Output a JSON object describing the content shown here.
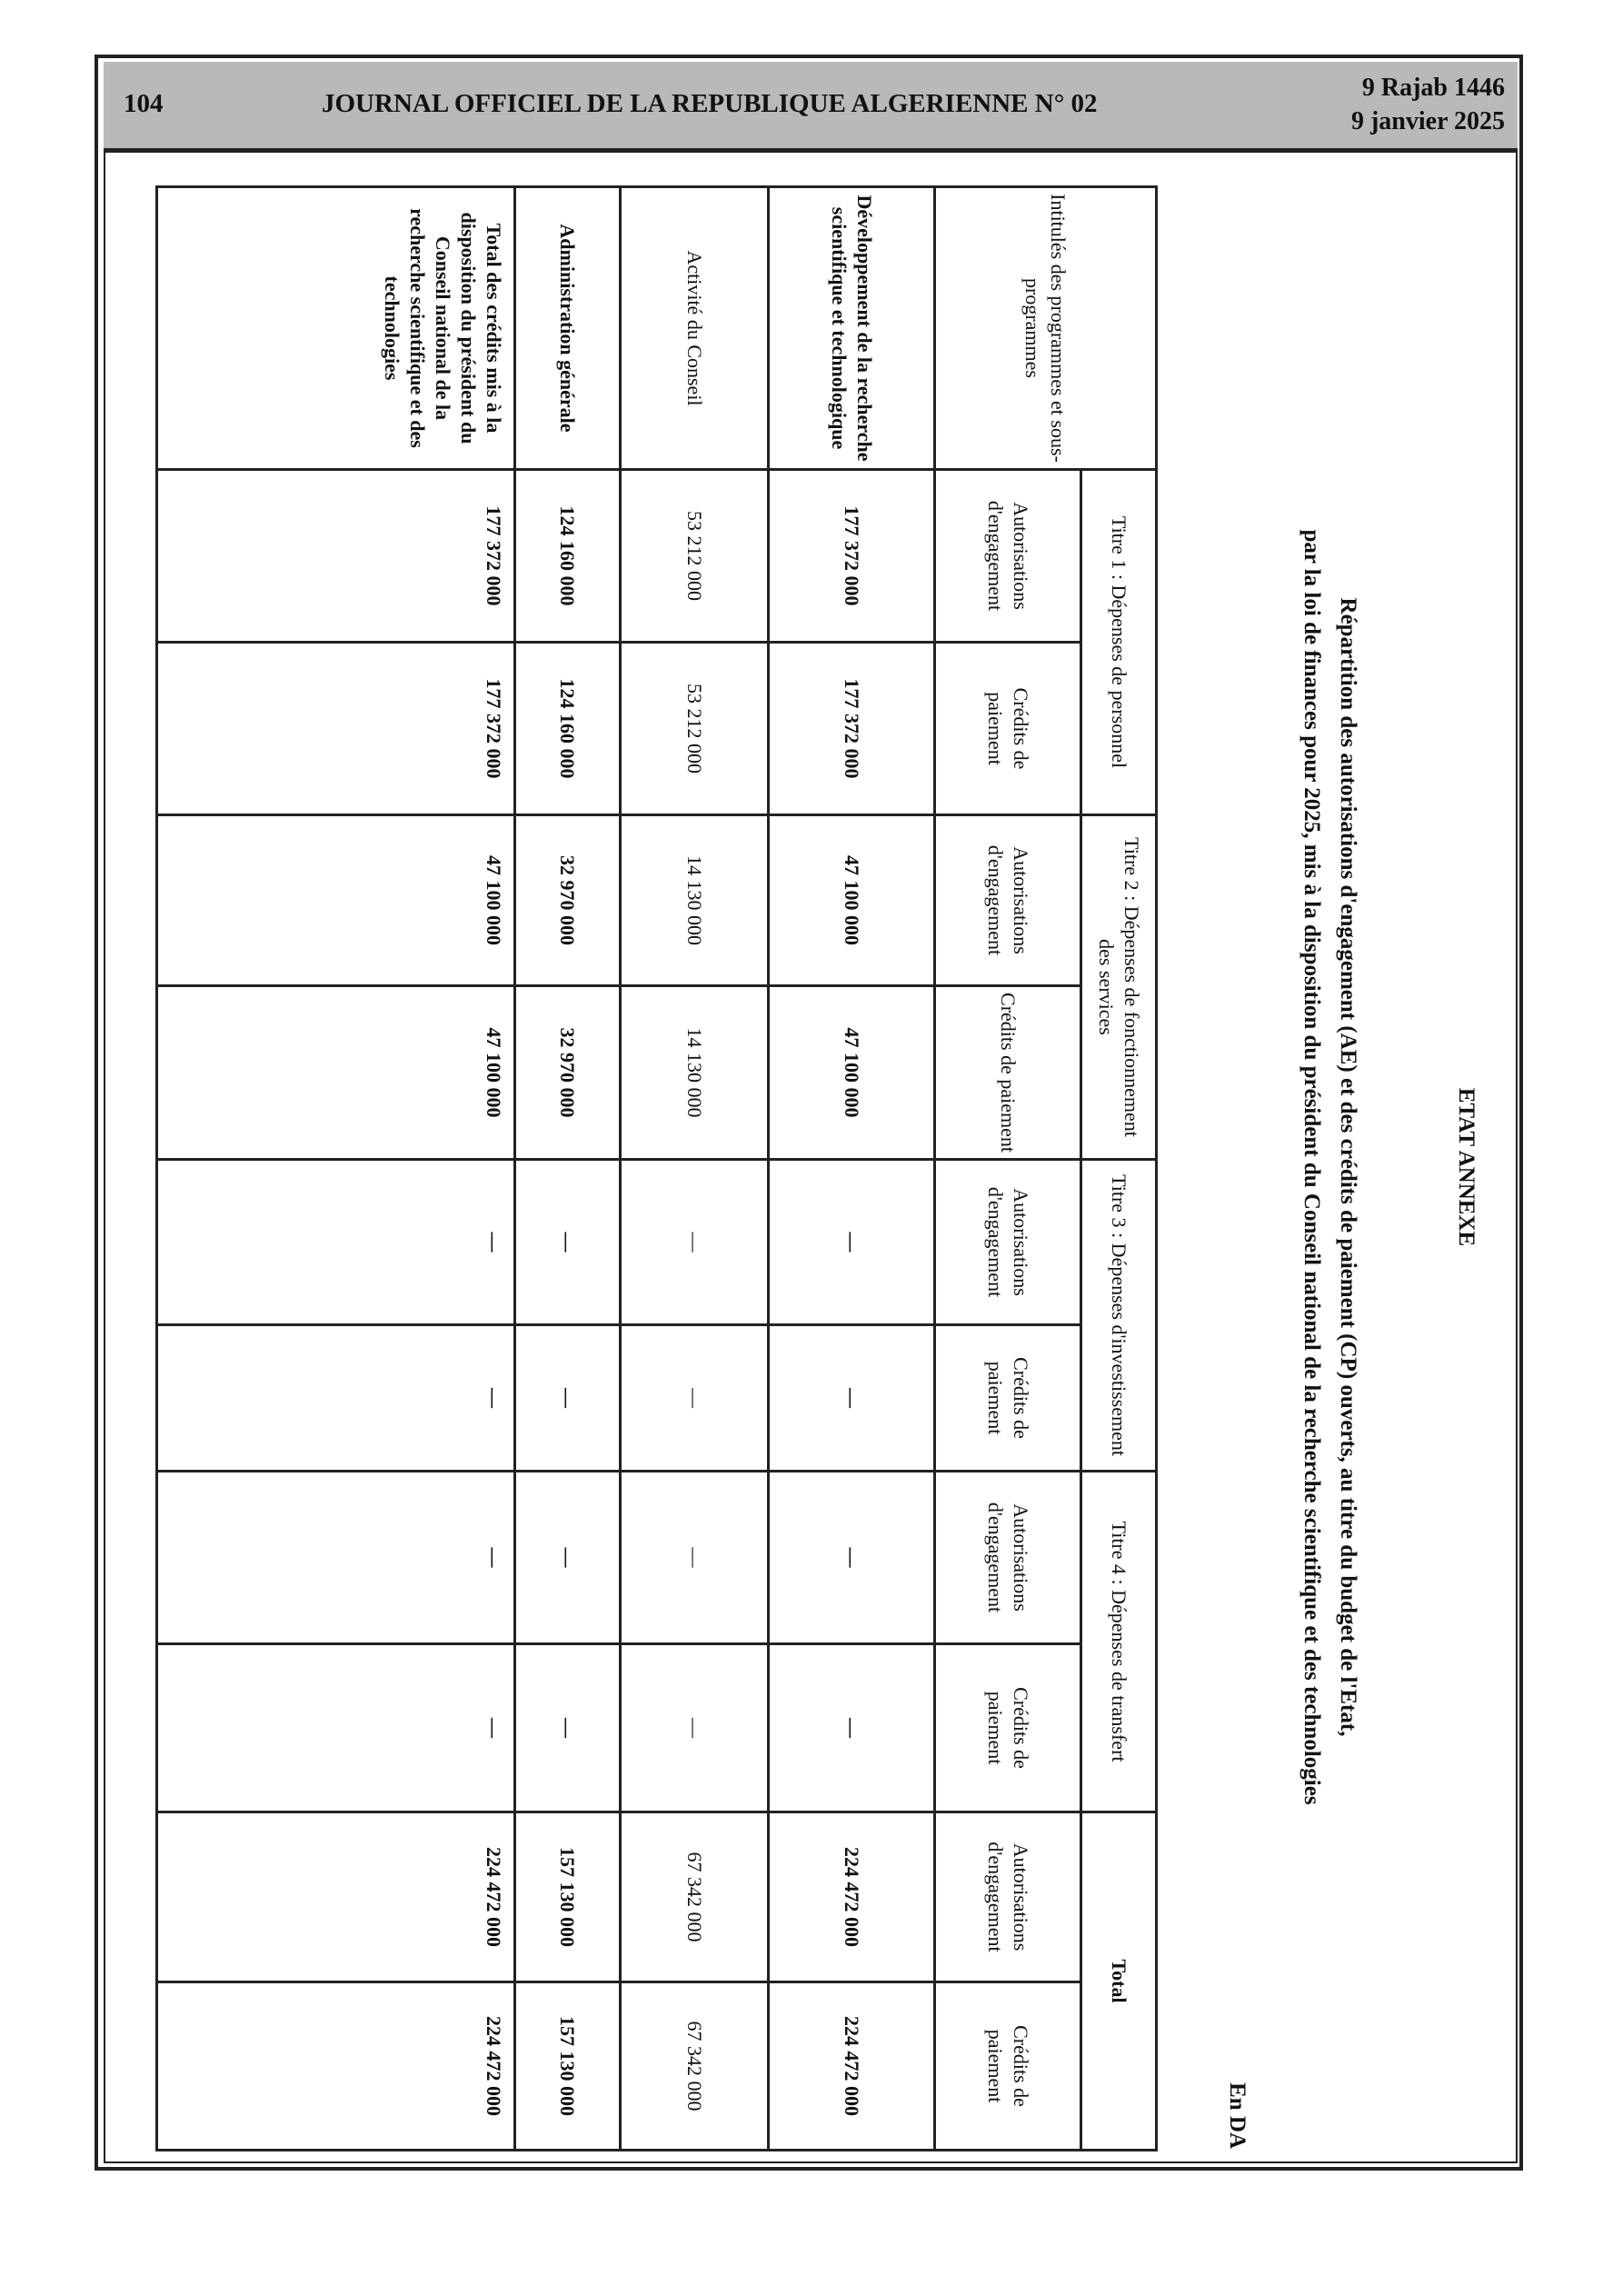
{
  "header": {
    "page_number": "104",
    "journal_title": "JOURNAL OFFICIEL DE LA REPUBLIQUE ALGERIENNE N° 02",
    "date_hijri": "9 Rajab 1446",
    "date_gregorian": "9 janvier 2025"
  },
  "annex": {
    "title": "ETAT ANNEXE",
    "subtitle_line1": "Répartition des autorisations d'engagement (AE) et des crédits de paiement (CP) ouverts, au titre du budget de l'Etat,",
    "subtitle_line2": "par la loi de finances pour 2025, mis à la disposition du président du Conseil national de la recherche scientifique et des technologies",
    "unit": "En DA"
  },
  "table": {
    "first_column_header": "Intitulés des programmes et sous-programmes",
    "groups": [
      "Titre 1 : Dépenses de personnel",
      "Titre 2 : Dépenses de fonctionnement des services",
      "Titre 3 : Dépenses d'investissement",
      "Titre 4 : Dépenses de transfert",
      "Total"
    ],
    "sub_headers": [
      "Autorisations d'engagement",
      "Crédits de paiement"
    ],
    "rows": [
      {
        "label": "Développement de la recherche scientifique et technologique",
        "bold": true,
        "values": [
          "177 372 000",
          "177 372 000",
          "47 100 000",
          "47 100 000",
          "—",
          "—",
          "—",
          "—",
          "224 472 000",
          "224 472 000"
        ]
      },
      {
        "label": "Activité du Conseil",
        "bold": false,
        "values": [
          "53 212 000",
          "53 212 000",
          "14 130 000",
          "14 130 000",
          "—",
          "—",
          "—",
          "—",
          "67 342 000",
          "67 342 000"
        ]
      },
      {
        "label": "Administration générale",
        "bold": true,
        "values": [
          "124 160 000",
          "124 160 000",
          "32 970 000",
          "32 970 000",
          "—",
          "—",
          "—",
          "—",
          "157 130 000",
          "157 130 000"
        ]
      },
      {
        "label": "Total des crédits mis à la disposition du président du Conseil national de la recherche scientifique et des technologies",
        "bold": true,
        "values": [
          "177 372 000",
          "177 372 000",
          "47 100 000",
          "47 100 000",
          "—",
          "—",
          "—",
          "—",
          "224 472 000",
          "224 472 000"
        ]
      }
    ]
  }
}
